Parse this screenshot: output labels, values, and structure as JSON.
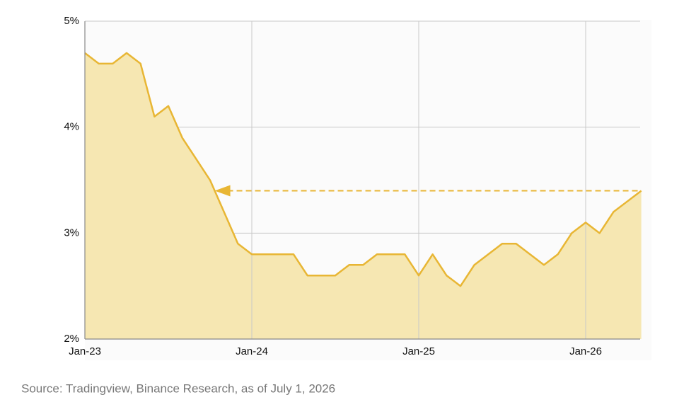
{
  "chart_data": {
    "type": "area",
    "categories": [
      "Jan-23",
      null,
      null,
      null,
      null,
      null,
      null,
      null,
      null,
      null,
      null,
      null,
      "Jan-24",
      null,
      null,
      null,
      null,
      null,
      null,
      null,
      null,
      null,
      null,
      null,
      "Jan-25",
      null,
      null,
      null,
      null,
      null,
      null,
      null,
      null,
      null,
      null,
      null,
      "Jan-26",
      null,
      null,
      null,
      null
    ],
    "values": [
      4.7,
      4.6,
      4.6,
      4.7,
      4.6,
      4.1,
      4.2,
      3.9,
      3.7,
      3.5,
      3.2,
      2.9,
      2.8,
      2.8,
      2.8,
      2.8,
      2.6,
      2.6,
      2.6,
      2.7,
      2.7,
      2.8,
      2.8,
      2.8,
      2.6,
      2.8,
      2.6,
      2.5,
      2.7,
      2.8,
      2.9,
      2.9,
      2.8,
      2.7,
      2.8,
      3.0,
      3.1,
      3.0,
      3.2,
      3.3,
      3.4
    ],
    "color": "#e8b634",
    "fill_color": "#f6e7b2",
    "ylim": [
      2,
      5
    ],
    "yticks": [
      {
        "value": 2,
        "label": "2%"
      },
      {
        "value": 3,
        "label": "3%"
      },
      {
        "value": 4,
        "label": "4%"
      },
      {
        "value": 5,
        "label": "5%"
      }
    ],
    "grid": true,
    "reference_line": 3.4,
    "source": "Source: Tradingview, Binance Research, as of July 1, 2026"
  }
}
